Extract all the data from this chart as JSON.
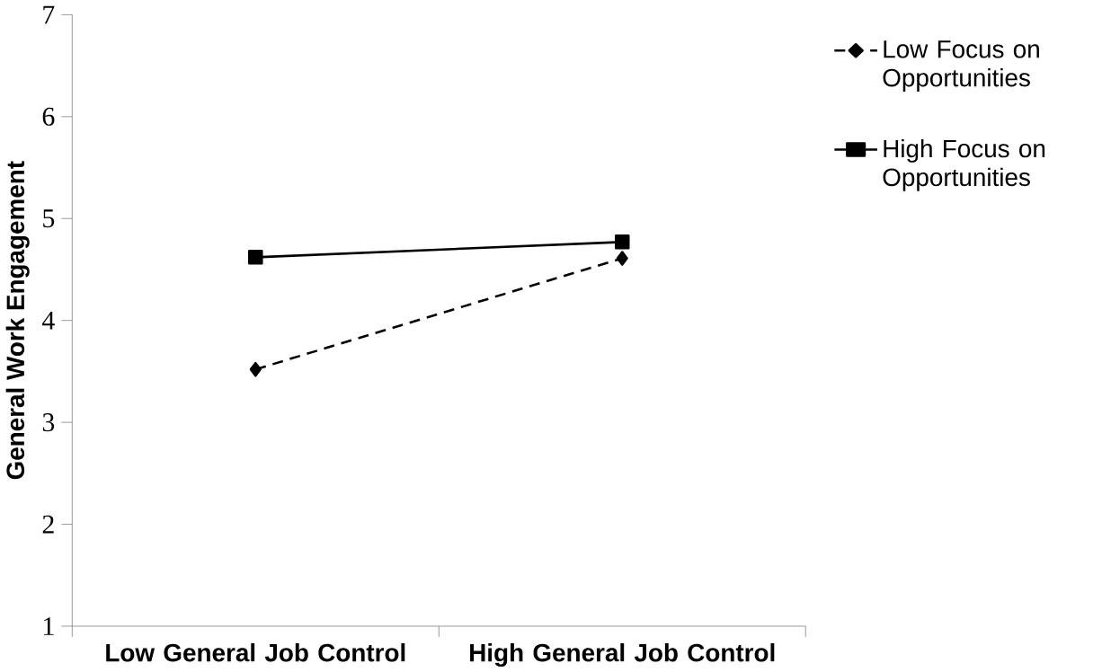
{
  "chart_data": {
    "type": "line",
    "ylabel": "General Work Engagement",
    "categories": [
      "Low General Job Control",
      "High General Job Control"
    ],
    "series": [
      {
        "name": "Low Focus on Opportunities",
        "color": "#000000",
        "values": [
          3.52,
          4.61
        ],
        "marker": "diamond",
        "line_style": "dashed"
      },
      {
        "name": "High Focus on Opportunities",
        "color": "#000000",
        "values": [
          4.62,
          4.77
        ],
        "marker": "square",
        "line_style": "solid"
      }
    ],
    "ylim": [
      1,
      7
    ],
    "yticks": [
      1,
      2,
      3,
      4,
      5,
      6,
      7
    ],
    "legend": "right",
    "grid": false
  }
}
